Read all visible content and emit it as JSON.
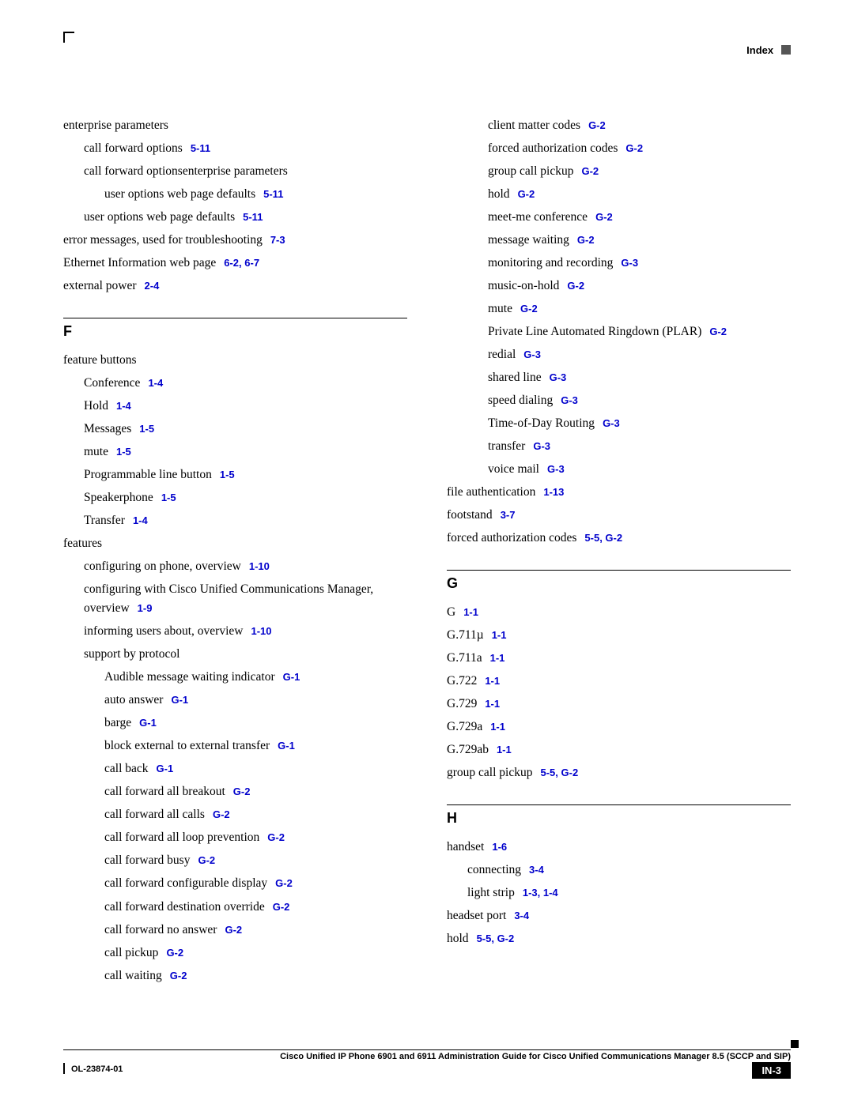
{
  "header": {
    "label": "Index"
  },
  "left": {
    "pre": [
      {
        "t": "enterprise parameters",
        "i": 0
      },
      {
        "t": "call forward options",
        "r": "5-11",
        "i": 1
      },
      {
        "t": "call forward optionsenterprise parameters",
        "i": 1
      },
      {
        "t": "user options web page defaults",
        "r": "5-11",
        "i": 2
      },
      {
        "t": "user options web page defaults",
        "r": "5-11",
        "i": 1
      },
      {
        "t": "error messages, used for troubleshooting",
        "r": "7-3",
        "i": 0
      },
      {
        "t": "Ethernet Information web page",
        "r": "6-2, 6-7",
        "i": 0
      },
      {
        "t": "external power",
        "r": "2-4",
        "i": 0
      }
    ],
    "F": [
      {
        "t": "feature buttons",
        "i": 0
      },
      {
        "t": "Conference",
        "r": "1-4",
        "i": 1
      },
      {
        "t": "Hold",
        "r": "1-4",
        "i": 1
      },
      {
        "t": "Messages",
        "r": "1-5",
        "i": 1
      },
      {
        "t": "mute",
        "r": "1-5",
        "i": 1
      },
      {
        "t": "Programmable line button",
        "r": "1-5",
        "i": 1
      },
      {
        "t": "Speakerphone",
        "r": "1-5",
        "i": 1
      },
      {
        "t": "Transfer",
        "r": "1-4",
        "i": 1
      },
      {
        "t": "features",
        "i": 0
      },
      {
        "t": "configuring on phone, overview",
        "r": "1-10",
        "i": 1
      },
      {
        "t": "configuring with Cisco Unified Communications Manager, overview",
        "r": "1-9",
        "i": 1
      },
      {
        "t": "informing users about, overview",
        "r": "1-10",
        "i": 1
      },
      {
        "t": "support by protocol",
        "i": 1
      },
      {
        "t": "Audible message waiting indicator",
        "r": "G-1",
        "i": 2
      },
      {
        "t": "auto answer",
        "r": "G-1",
        "i": 2
      },
      {
        "t": "barge",
        "r": "G-1",
        "i": 2
      },
      {
        "t": "block external to external transfer",
        "r": "G-1",
        "i": 2
      },
      {
        "t": "call back",
        "r": "G-1",
        "i": 2
      },
      {
        "t": "call forward all breakout",
        "r": "G-2",
        "i": 2
      },
      {
        "t": "call forward all calls",
        "r": "G-2",
        "i": 2
      },
      {
        "t": "call forward all loop prevention",
        "r": "G-2",
        "i": 2
      },
      {
        "t": "call forward busy",
        "r": "G-2",
        "i": 2
      },
      {
        "t": "call forward configurable display",
        "r": "G-2",
        "i": 2
      },
      {
        "t": "call forward destination override",
        "r": "G-2",
        "i": 2
      },
      {
        "t": "call forward no answer",
        "r": "G-2",
        "i": 2
      },
      {
        "t": "call pickup",
        "r": "G-2",
        "i": 2
      },
      {
        "t": "call waiting",
        "r": "G-2",
        "i": 2
      }
    ]
  },
  "right": {
    "pre": [
      {
        "t": "client matter codes",
        "r": "G-2",
        "i": 2
      },
      {
        "t": "forced authorization codes",
        "r": "G-2",
        "i": 2
      },
      {
        "t": "group call pickup",
        "r": "G-2",
        "i": 2
      },
      {
        "t": "hold",
        "r": "G-2",
        "i": 2
      },
      {
        "t": "meet-me conference",
        "r": "G-2",
        "i": 2
      },
      {
        "t": "message waiting",
        "r": "G-2",
        "i": 2
      },
      {
        "t": "monitoring and recording",
        "r": "G-3",
        "i": 2
      },
      {
        "t": "music-on-hold",
        "r": "G-2",
        "i": 2
      },
      {
        "t": "mute",
        "r": "G-2",
        "i": 2
      },
      {
        "t": "Private Line Automated Ringdown (PLAR)",
        "r": "G-2",
        "i": 2
      },
      {
        "t": "redial",
        "r": "G-3",
        "i": 2
      },
      {
        "t": "shared line",
        "r": "G-3",
        "i": 2
      },
      {
        "t": "speed dialing",
        "r": "G-3",
        "i": 2
      },
      {
        "t": "Time-of-Day Routing",
        "r": "G-3",
        "i": 2
      },
      {
        "t": "transfer",
        "r": "G-3",
        "i": 2
      },
      {
        "t": "voice mail",
        "r": "G-3",
        "i": 2
      },
      {
        "t": "file authentication",
        "r": "1-13",
        "i": 0
      },
      {
        "t": "footstand",
        "r": "3-7",
        "i": 0
      },
      {
        "t": "forced authorization codes",
        "r": "5-5, G-2",
        "i": 0
      }
    ],
    "G": [
      {
        "t": "G",
        "r": "1-1",
        "i": 0
      },
      {
        "t": "G.711µ",
        "r": "1-1",
        "i": 0
      },
      {
        "t": "G.711a",
        "r": "1-1",
        "i": 0
      },
      {
        "t": "G.722",
        "r": "1-1",
        "i": 0
      },
      {
        "t": "G.729",
        "r": "1-1",
        "i": 0
      },
      {
        "t": "G.729a",
        "r": "1-1",
        "i": 0
      },
      {
        "t": "G.729ab",
        "r": "1-1",
        "i": 0
      },
      {
        "t": "group call pickup",
        "r": "5-5, G-2",
        "i": 0
      }
    ],
    "H": [
      {
        "t": "handset",
        "r": "1-6",
        "i": 0
      },
      {
        "t": "connecting",
        "r": "3-4",
        "i": 1
      },
      {
        "t": "light strip",
        "r": "1-3, 1-4",
        "i": 1
      },
      {
        "t": "headset port",
        "r": "3-4",
        "i": 0
      },
      {
        "t": "hold",
        "r": "5-5, G-2",
        "i": 0
      }
    ]
  },
  "footer": {
    "title": "Cisco Unified IP Phone 6901 and 6911 Administration Guide for Cisco Unified Communications Manager 8.5 (SCCP and SIP)",
    "doc": "OL-23874-01",
    "page": "IN-3"
  }
}
